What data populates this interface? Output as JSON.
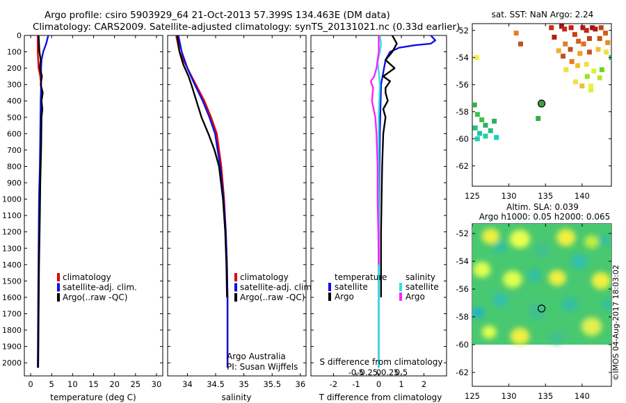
{
  "title": {
    "line1": "Argo profile: csiro 5903929_64 21-Oct-2013 57.399S 134.463E (DM data)",
    "line2": "Climatology: CARS2009. Satellite-adjusted climatology: synTS_20131021.nc (0.33d earlier)"
  },
  "side_label": "©IMOS 04-Aug-2017 18:03:02",
  "colors": {
    "climatology": "#e00000",
    "satellite": "#1010e0",
    "argo": "#000000",
    "sal_satellite": "#30e0e0",
    "sal_argo": "#ff20ff"
  },
  "chart_data": [
    {
      "id": "temperature",
      "type": "line",
      "xlabel": "temperature (deg C)",
      "ylabel": "",
      "xlim": [
        -1.5,
        31.5
      ],
      "ylim": [
        0,
        2080
      ],
      "xticks": [
        0,
        5,
        10,
        15,
        20,
        25,
        30
      ],
      "xtick_labels": [
        "0",
        "5",
        "10",
        "15",
        "20",
        "25",
        "30"
      ],
      "yticks": [
        0,
        100,
        200,
        300,
        400,
        500,
        600,
        700,
        800,
        900,
        1000,
        1100,
        1200,
        1300,
        1400,
        1500,
        1600,
        1700,
        1800,
        1900,
        2000
      ],
      "ytick_labels": [
        "0",
        "100",
        "200",
        "300",
        "400",
        "500",
        "600",
        "700",
        "800",
        "900",
        "1000",
        "1100",
        "1200",
        "1300",
        "1400",
        "1500",
        "1600",
        "1700",
        "1800",
        "1900",
        "2000"
      ],
      "legend": [
        "climatology",
        "satellite-adj. clim.",
        "Argo(..raw -QC)"
      ],
      "series": [
        {
          "name": "climatology",
          "color": "#e00000",
          "x": [
            1.7,
            1.7,
            1.8,
            1.9,
            2.3,
            2.5,
            2.5,
            2.4,
            2.3,
            2.2,
            2.0,
            1.9,
            1.8,
            1.7
          ],
          "y": [
            0,
            100,
            150,
            200,
            250,
            300,
            400,
            600,
            800,
            1000,
            1300,
            1600,
            1900,
            2030
          ]
        },
        {
          "name": "satellite-adj. clim.",
          "color": "#1010e0",
          "x": [
            4.2,
            3.7,
            3.0,
            2.6,
            2.5,
            2.5,
            2.4,
            2.3,
            2.2,
            2.0,
            1.9,
            1.8,
            1.7
          ],
          "y": [
            0,
            50,
            100,
            150,
            200,
            300,
            400,
            600,
            800,
            1000,
            1300,
            1600,
            2030
          ]
        },
        {
          "name": "Argo(..raw -QC)",
          "color": "#000000",
          "x": [
            1.9,
            2.1,
            2.4,
            2.2,
            2.7,
            2.4,
            2.9,
            2.6,
            2.8,
            2.6,
            2.5,
            2.3,
            2.2,
            2.0,
            1.9,
            1.8
          ],
          "y": [
            0,
            100,
            150,
            200,
            250,
            300,
            350,
            400,
            450,
            500,
            700,
            900,
            1100,
            1400,
            1700,
            2030
          ]
        }
      ]
    },
    {
      "id": "salinity",
      "type": "line",
      "xlabel": "salinity",
      "ylabel": "",
      "xlim": [
        33.65,
        36.1
      ],
      "ylim": [
        0,
        2080
      ],
      "xticks": [
        34,
        34.5,
        35,
        35.5,
        36
      ],
      "xtick_labels": [
        "34",
        "34.5",
        "35",
        "35.5",
        "36"
      ],
      "legend": [
        "climatology",
        "satellite-adj. clim.",
        "Argo(..raw -QC)"
      ],
      "annotation": [
        "Argo Australia",
        "PI: Susan Wijffels"
      ],
      "series": [
        {
          "name": "climatology",
          "color": "#e00000",
          "x": [
            33.8,
            33.86,
            34.0,
            34.15,
            34.3,
            34.42,
            34.52,
            34.6,
            34.65,
            34.68,
            34.7,
            34.71,
            34.71
          ],
          "y": [
            0,
            100,
            200,
            300,
            400,
            500,
            600,
            800,
            1000,
            1200,
            1400,
            1600,
            2030
          ]
        },
        {
          "name": "satellite-adj. clim.",
          "color": "#1010e0",
          "x": [
            33.84,
            33.9,
            34.0,
            34.13,
            34.27,
            34.39,
            34.49,
            34.58,
            34.64,
            34.68,
            34.7,
            34.71,
            34.71
          ],
          "y": [
            0,
            100,
            200,
            300,
            400,
            500,
            600,
            800,
            1000,
            1200,
            1400,
            1600,
            2030
          ]
        },
        {
          "name": "Argo(..raw -QC)",
          "color": "#000000",
          "x": [
            33.82,
            33.86,
            33.93,
            34.02,
            34.07,
            34.16,
            34.25,
            34.37,
            34.48,
            34.56,
            34.63,
            34.67,
            34.69,
            34.7
          ],
          "y": [
            0,
            100,
            180,
            250,
            300,
            400,
            500,
            600,
            700,
            800,
            1000,
            1200,
            1400,
            1600
          ]
        }
      ]
    },
    {
      "id": "differences",
      "type": "line",
      "xlabel": "T difference from climatology",
      "xlabel_top": "S difference from climatology",
      "xlim": [
        -3,
        3
      ],
      "ylim": [
        0,
        2080
      ],
      "xticks": [
        -2,
        -1,
        0,
        1,
        2
      ],
      "xtick_labels": [
        "-2",
        "-1",
        "0",
        "1",
        "2"
      ],
      "xticks_top": [
        -1,
        -0.5,
        0,
        0.5,
        1
      ],
      "xtick_labels_top": [
        "-0.5",
        "-0.25",
        "0",
        "0.25",
        "0.5"
      ],
      "legend_titles": [
        "temperature",
        "salinity"
      ],
      "legend": [
        "satellite",
        "Argo",
        "satellite",
        "Argo"
      ],
      "series": [
        {
          "name": "temperature satellite",
          "color": "#1010e0",
          "x": [
            2.3,
            2.5,
            2.3,
            1.6,
            0.9,
            0.5,
            0.3,
            0.1,
            0.05,
            0.0,
            0.0
          ],
          "y": [
            0,
            30,
            50,
            60,
            75,
            100,
            150,
            300,
            600,
            1200,
            2030
          ]
        },
        {
          "name": "temperature Argo",
          "color": "#000000",
          "x": [
            0.6,
            0.8,
            0.6,
            0.3,
            0.7,
            0.4,
            0.2,
            0.5,
            0.3,
            0.3,
            0.4,
            0.2,
            0.3,
            0.2,
            0.15,
            0.1,
            0.1
          ],
          "y": [
            0,
            50,
            100,
            150,
            200,
            230,
            250,
            280,
            320,
            350,
            400,
            450,
            500,
            600,
            800,
            1200,
            1600
          ]
        },
        {
          "name": "salinity satellite",
          "color": "#30e0e0",
          "x": [
            0.05,
            0.1,
            0.05,
            0.0,
            -0.05,
            0.0,
            0.05,
            0.0,
            0.0,
            0.0
          ],
          "y": [
            0,
            50,
            100,
            130,
            160,
            220,
            300,
            500,
            1000,
            2030
          ]
        },
        {
          "name": "salinity Argo",
          "color": "#ff20ff",
          "x": [
            0.0,
            0.0,
            -0.05,
            -0.1,
            -0.2,
            -0.35,
            -0.25,
            -0.3,
            -0.15,
            -0.1,
            -0.05,
            -0.05,
            -0.02,
            0.0
          ],
          "y": [
            0,
            100,
            150,
            200,
            250,
            280,
            320,
            400,
            500,
            600,
            800,
            1000,
            1200,
            1400
          ]
        }
      ]
    },
    {
      "id": "sst_map",
      "type": "heatmap",
      "title": "sat. SST: NaN Argo: 2.24",
      "xlim": [
        125,
        144
      ],
      "ylim": [
        -63.5,
        -51.5
      ],
      "xticks": [
        125,
        130,
        135,
        140
      ],
      "xtick_labels": [
        "125",
        "130",
        "135",
        "140"
      ],
      "yticks": [
        -52,
        -54,
        -56,
        -58,
        -60,
        -62
      ],
      "ytick_labels": [
        "-52",
        "-54",
        "-56",
        "-58",
        "-60",
        "-62"
      ],
      "argo_position": [
        134.463,
        -57.399
      ],
      "patches": [
        {
          "lon": 135.8,
          "lat": -51.8,
          "color": "#c03010"
        },
        {
          "lon": 136.2,
          "lat": -52.5,
          "color": "#b02010"
        },
        {
          "lon": 137.2,
          "lat": -51.7,
          "color": "#a01818"
        },
        {
          "lon": 137.6,
          "lat": -51.9,
          "color": "#c02818"
        },
        {
          "lon": 138.5,
          "lat": -51.8,
          "color": "#c02010"
        },
        {
          "lon": 139.0,
          "lat": -52.3,
          "color": "#d04010"
        },
        {
          "lon": 140.1,
          "lat": -51.8,
          "color": "#b01818"
        },
        {
          "lon": 140.6,
          "lat": -52.0,
          "color": "#c02810"
        },
        {
          "lon": 141.4,
          "lat": -51.8,
          "color": "#a01010"
        },
        {
          "lon": 141.8,
          "lat": -51.9,
          "color": "#b01818"
        },
        {
          "lon": 142.6,
          "lat": -51.8,
          "color": "#c04010"
        },
        {
          "lon": 143.2,
          "lat": -52.2,
          "color": "#d06010"
        },
        {
          "lon": 143.5,
          "lat": -52.9,
          "color": "#e09020"
        },
        {
          "lon": 142.4,
          "lat": -52.6,
          "color": "#d05010"
        },
        {
          "lon": 141.0,
          "lat": -52.6,
          "color": "#c04010"
        },
        {
          "lon": 140.2,
          "lat": -53.0,
          "color": "#e07020"
        },
        {
          "lon": 139.5,
          "lat": -52.8,
          "color": "#d06020"
        },
        {
          "lon": 138.4,
          "lat": -53.4,
          "color": "#c05020"
        },
        {
          "lon": 137.7,
          "lat": -53.0,
          "color": "#e08020"
        },
        {
          "lon": 136.8,
          "lat": -53.5,
          "color": "#f0b030"
        },
        {
          "lon": 137.4,
          "lat": -53.9,
          "color": "#c05020"
        },
        {
          "lon": 138.6,
          "lat": -54.3,
          "color": "#e08020"
        },
        {
          "lon": 139.7,
          "lat": -53.7,
          "color": "#f0a020"
        },
        {
          "lon": 141.0,
          "lat": -53.6,
          "color": "#d05020"
        },
        {
          "lon": 142.2,
          "lat": -53.4,
          "color": "#f0c030"
        },
        {
          "lon": 143.3,
          "lat": -53.6,
          "color": "#f0e040"
        },
        {
          "lon": 140.6,
          "lat": -54.5,
          "color": "#f0e040"
        },
        {
          "lon": 139.4,
          "lat": -54.6,
          "color": "#f0c030"
        },
        {
          "lon": 137.8,
          "lat": -54.9,
          "color": "#f0e040"
        },
        {
          "lon": 141.6,
          "lat": -55.0,
          "color": "#e0f030"
        },
        {
          "lon": 140.7,
          "lat": -55.4,
          "color": "#a0e020"
        },
        {
          "lon": 142.4,
          "lat": -55.5,
          "color": "#c0e030"
        },
        {
          "lon": 141.2,
          "lat": -56.1,
          "color": "#f0f040"
        },
        {
          "lon": 140.0,
          "lat": -56.1,
          "color": "#f0c030"
        },
        {
          "lon": 142.7,
          "lat": -54.9,
          "color": "#70d020"
        },
        {
          "lon": 141.2,
          "lat": -56.4,
          "color": "#e0f040"
        },
        {
          "lon": 139.1,
          "lat": -55.8,
          "color": "#f0e040"
        },
        {
          "lon": 144.0,
          "lat": -54.0,
          "color": "#30b060"
        },
        {
          "lon": 131.0,
          "lat": -52.2,
          "color": "#e08020"
        },
        {
          "lon": 131.6,
          "lat": -53.0,
          "color": "#c05020"
        },
        {
          "lon": 125.6,
          "lat": -54.0,
          "color": "#f0f040"
        },
        {
          "lon": 125.3,
          "lat": -57.5,
          "color": "#30b040"
        },
        {
          "lon": 125.7,
          "lat": -58.2,
          "color": "#40c050"
        },
        {
          "lon": 126.3,
          "lat": -58.6,
          "color": "#40c050"
        },
        {
          "lon": 126.8,
          "lat": -59.0,
          "color": "#30b060"
        },
        {
          "lon": 125.4,
          "lat": -59.2,
          "color": "#20c080"
        },
        {
          "lon": 126.0,
          "lat": -59.6,
          "color": "#20c0a0"
        },
        {
          "lon": 126.8,
          "lat": -59.8,
          "color": "#20d0a0"
        },
        {
          "lon": 127.5,
          "lat": -59.4,
          "color": "#20c080"
        },
        {
          "lon": 128.0,
          "lat": -58.7,
          "color": "#30b060"
        },
        {
          "lon": 128.3,
          "lat": -59.9,
          "color": "#10d0c0"
        },
        {
          "lon": 125.7,
          "lat": -60.0,
          "color": "#20d0b0"
        },
        {
          "lon": 134.0,
          "lat": -58.5,
          "color": "#30b040"
        }
      ]
    },
    {
      "id": "sla_map",
      "type": "heatmap",
      "title": "Altim. SLA: 0.039",
      "subtitle": "Argo h1000: 0.05 h2000: 0.065",
      "xlim": [
        125,
        144
      ],
      "ylim": [
        -63,
        -51.3
      ],
      "xticks": [
        125,
        130,
        135,
        140
      ],
      "xtick_labels": [
        "125",
        "130",
        "135",
        "140"
      ],
      "yticks": [
        -52,
        -54,
        -56,
        -58,
        -60,
        -62
      ],
      "ytick_labels": [
        "-52",
        "-54",
        "-56",
        "-58",
        "-60",
        "-62"
      ],
      "data_extent_lat": [
        -60,
        -51.3
      ],
      "argo_position": [
        134.463,
        -57.399
      ],
      "blobs": [
        {
          "lon": 127.5,
          "lat": -52.2,
          "r": 1.2,
          "color": "#f0f040"
        },
        {
          "lon": 131.5,
          "lat": -52.4,
          "r": 1.4,
          "color": "#e8ff50"
        },
        {
          "lon": 137.8,
          "lat": -52.3,
          "r": 1.3,
          "color": "#f0f040"
        },
        {
          "lon": 141.3,
          "lat": -52.6,
          "r": 1.0,
          "color": "#c0f040"
        },
        {
          "lon": 143.0,
          "lat": -52.5,
          "r": 0.8,
          "color": "#30c0a0"
        },
        {
          "lon": 128.8,
          "lat": -53.0,
          "r": 0.9,
          "color": "#30c0a0"
        },
        {
          "lon": 134.5,
          "lat": -53.2,
          "r": 1.0,
          "color": "#40c090"
        },
        {
          "lon": 139.6,
          "lat": -54.0,
          "r": 1.1,
          "color": "#30c0b0"
        },
        {
          "lon": 126.3,
          "lat": -54.6,
          "r": 1.2,
          "color": "#e0ff50"
        },
        {
          "lon": 130.5,
          "lat": -55.3,
          "r": 1.3,
          "color": "#e0ff50"
        },
        {
          "lon": 133.5,
          "lat": -55.0,
          "r": 1.0,
          "color": "#30c0a0"
        },
        {
          "lon": 136.6,
          "lat": -55.2,
          "r": 1.2,
          "color": "#f0f040"
        },
        {
          "lon": 142.6,
          "lat": -55.4,
          "r": 1.3,
          "color": "#f0f040"
        },
        {
          "lon": 128.8,
          "lat": -56.8,
          "r": 1.0,
          "color": "#30c0b0"
        },
        {
          "lon": 133.8,
          "lat": -57.6,
          "r": 1.2,
          "color": "#40c090"
        },
        {
          "lon": 138.3,
          "lat": -57.1,
          "r": 1.1,
          "color": "#30c0a0"
        },
        {
          "lon": 125.8,
          "lat": -57.7,
          "r": 0.8,
          "color": "#20b0d0"
        },
        {
          "lon": 141.3,
          "lat": -58.7,
          "r": 1.4,
          "color": "#e0f050"
        },
        {
          "lon": 127.3,
          "lat": -59.1,
          "r": 1.0,
          "color": "#e0ff50"
        },
        {
          "lon": 131.5,
          "lat": -59.4,
          "r": 1.3,
          "color": "#f0f040"
        },
        {
          "lon": 136.5,
          "lat": -59.5,
          "r": 1.0,
          "color": "#40c090"
        },
        {
          "lon": 143.5,
          "lat": -57.1,
          "r": 0.8,
          "color": "#30c0a0"
        }
      ]
    }
  ]
}
